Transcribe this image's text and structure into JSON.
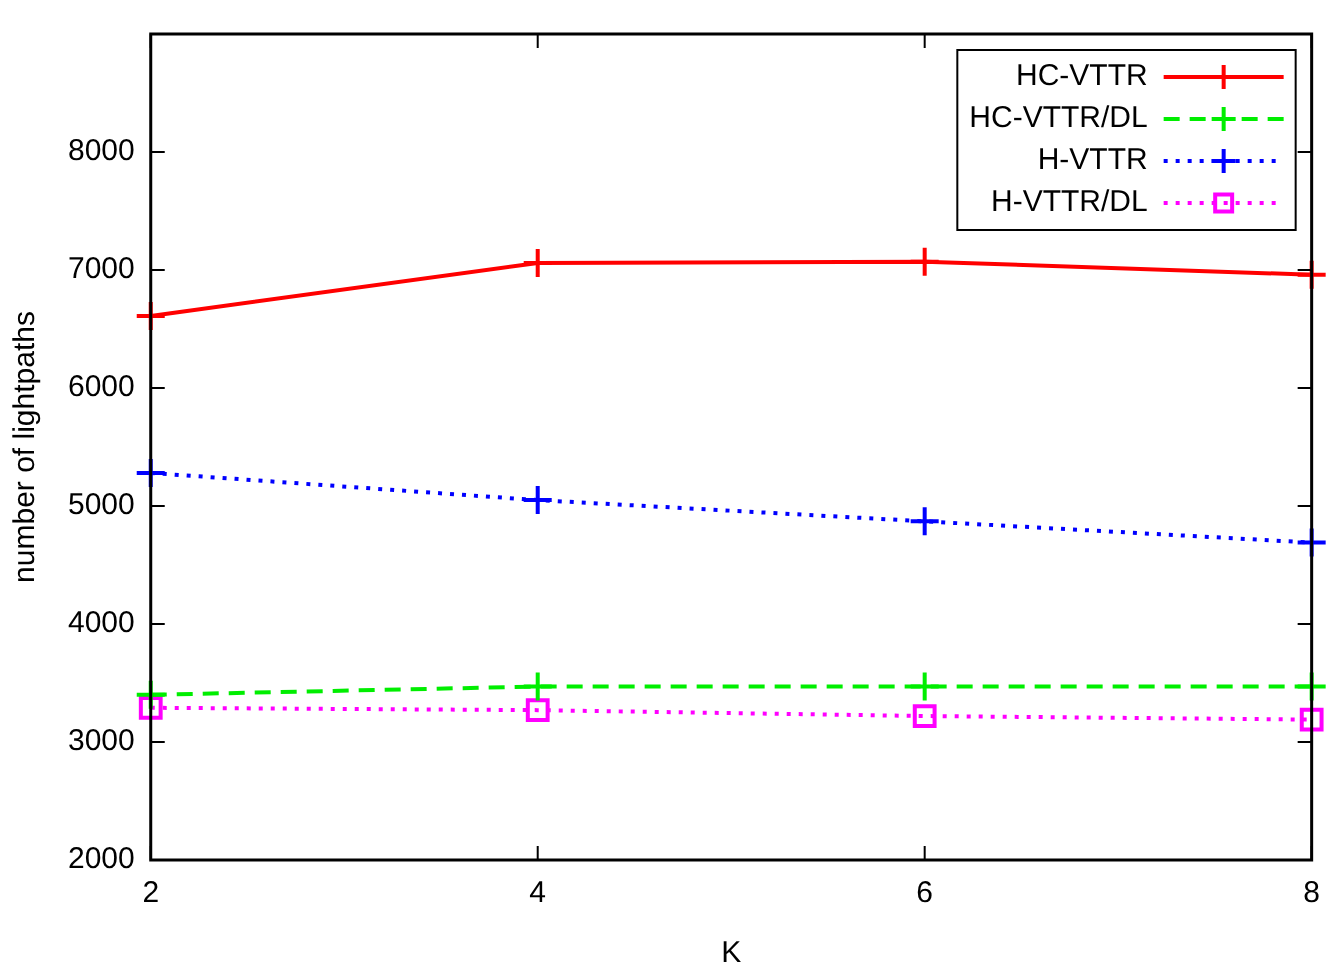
{
  "chart_data": {
    "type": "line",
    "xlabel": "K",
    "ylabel": "number of lightpaths",
    "x": [
      2,
      4,
      6,
      8
    ],
    "xlim": [
      2,
      8
    ],
    "xticks": [
      2,
      4,
      6,
      8
    ],
    "ylim": [
      2000,
      9000
    ],
    "yticks": [
      2000,
      3000,
      4000,
      5000,
      6000,
      7000,
      8000
    ],
    "grid": false,
    "legend": "top right",
    "series": [
      {
        "name": "HC-VTTR",
        "color": "#ff0000",
        "values": [
          6610,
          7060,
          7070,
          6960
        ],
        "marker": "cross",
        "line_style": "solid"
      },
      {
        "name": "HC-VTTR/DL",
        "color": "#00ee00",
        "values": [
          3400,
          3470,
          3470,
          3470
        ],
        "marker": "cross",
        "line_style": "dashed"
      },
      {
        "name": "H-VTTR",
        "color": "#0000ff",
        "values": [
          5280,
          5050,
          4870,
          4690
        ],
        "marker": "cross",
        "line_style": "dotted"
      },
      {
        "name": "H-VTTR/DL",
        "color": "#ff00ff",
        "values": [
          3290,
          3270,
          3220,
          3190
        ],
        "marker": "square",
        "line_style": "dotted"
      }
    ]
  }
}
